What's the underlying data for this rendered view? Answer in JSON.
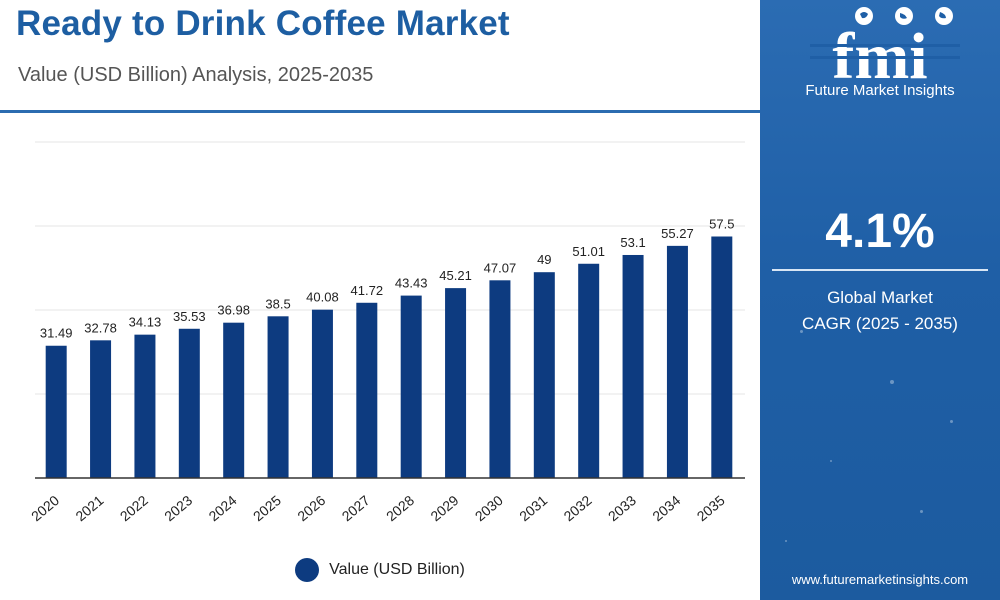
{
  "header": {
    "title": "Ready to Drink Coffee Market",
    "subtitle": "Value (USD Billion) Analysis, 2025-2035"
  },
  "sidebar": {
    "brand_name": "Future Market Insights",
    "logo_text": "fmi",
    "cagr_value": "4.1%",
    "cagr_label_line1": "Global Market",
    "cagr_label_line2": "CAGR (2025 - 2035)",
    "website": "www.futuremarketinsights.com"
  },
  "colors": {
    "bar": "#0d3b80",
    "title": "#1d5ea2",
    "sidebar": "#1f5fa6"
  },
  "chart_data": {
    "type": "bar",
    "categories": [
      "2020",
      "2021",
      "2022",
      "2023",
      "2024",
      "2025",
      "2026",
      "2027",
      "2028",
      "2029",
      "2030",
      "2031",
      "2032",
      "2033",
      "2034",
      "2035"
    ],
    "series": [
      {
        "name": "Value (USD Billion)",
        "values": [
          31.49,
          32.78,
          34.13,
          35.53,
          36.98,
          38.5,
          40.08,
          41.72,
          43.43,
          45.21,
          47.07,
          49,
          51.01,
          53.1,
          55.27,
          57.5
        ]
      }
    ],
    "data_labels": [
      "31.49",
      "32.78",
      "34.13",
      "35.53",
      "36.98",
      "38.5",
      "40.08",
      "41.72",
      "43.43",
      "45.21",
      "47.07",
      "49",
      "51.01",
      "53.1",
      "55.27",
      "57.5"
    ],
    "ylim": [
      0,
      80
    ],
    "grid": true,
    "legend_position": "bottom-center",
    "legend_label": "Value (USD Billion)"
  }
}
